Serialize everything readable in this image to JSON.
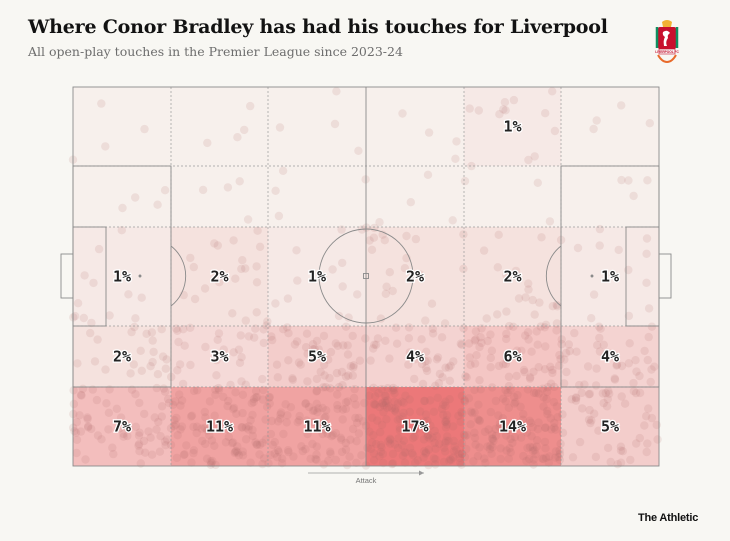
{
  "header": {
    "title": "Where Conor Bradley has had his touches for Liverpool",
    "subtitle": "All open-play touches in the Premier League since 2023-24"
  },
  "brand": {
    "name": "The Athletic"
  },
  "crest": {
    "icon": "liverpool-crest-icon",
    "label": "LIVERPOOL FC"
  },
  "colors": {
    "heat": "#e8474a",
    "pitch_lines": "#8a8a8a",
    "background": "#f8f7f3"
  },
  "chart_data": {
    "type": "heatmap",
    "title": "Where Conor Bradley has had his touches for Liverpool",
    "subtitle": "All open-play touches in the Premier League since 2023-24",
    "direction_label": "Attack",
    "columns": 6,
    "rows": 5,
    "unit": "%",
    "cells": [
      [
        "",
        "",
        "",
        "",
        "1%",
        ""
      ],
      [
        "",
        "",
        "",
        "",
        "",
        ""
      ],
      [
        "1%",
        "2%",
        "1%",
        "2%",
        "2%",
        "1%"
      ],
      [
        "2%",
        "3%",
        "5%",
        "4%",
        "6%",
        "4%"
      ],
      [
        "7%",
        "11%",
        "11%",
        "17%",
        "14%",
        "5%"
      ]
    ],
    "values": [
      [
        0,
        0,
        0,
        0,
        1,
        0
      ],
      [
        0,
        0,
        0,
        0,
        0,
        0
      ],
      [
        1,
        2,
        1,
        2,
        2,
        1
      ],
      [
        2,
        3,
        5,
        4,
        6,
        4
      ],
      [
        7,
        11,
        11,
        17,
        14,
        5
      ]
    ]
  }
}
